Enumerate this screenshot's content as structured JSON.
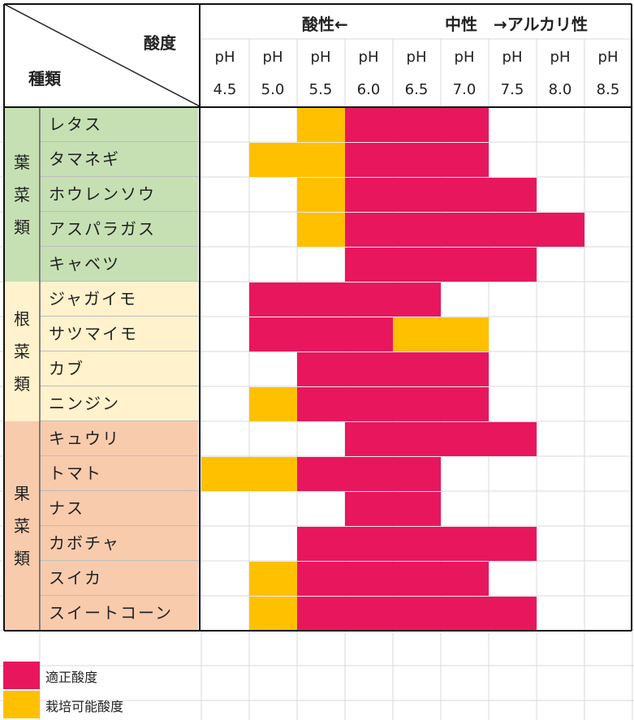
{
  "header": {
    "acidity_label": "酸度",
    "kind_label": "種類",
    "acidic_label": "酸性←",
    "neutral_label": "中性",
    "alkaline_label": "→アルカリ性"
  },
  "colors": {
    "optimal": "#e8175d",
    "possible": "#ffc000",
    "leaf": "#c6e0b4",
    "root": "#fff2cc",
    "fruit": "#f8cbad"
  },
  "legend": [
    {
      "label": "適正酸度",
      "color": "#e8175d"
    },
    {
      "label": "栽培可能酸度",
      "color": "#ffc000"
    }
  ],
  "chart_data": {
    "type": "table",
    "ph_columns": [
      {
        "top": "pH",
        "bottom": "4.5"
      },
      {
        "top": "pH",
        "bottom": "5.0"
      },
      {
        "top": "pH",
        "bottom": "5.5"
      },
      {
        "top": "pH",
        "bottom": "6.0"
      },
      {
        "top": "pH",
        "bottom": "6.5"
      },
      {
        "top": "pH",
        "bottom": "7.0"
      },
      {
        "top": "pH",
        "bottom": "7.5"
      },
      {
        "top": "pH",
        "bottom": "8.0"
      },
      {
        "top": "pH",
        "bottom": "8.5"
      }
    ],
    "categories": [
      {
        "name": "葉菜類",
        "chars": [
          "葉",
          "菜",
          "類"
        ],
        "color_key": "leaf",
        "rows": 5
      },
      {
        "name": "根菜類",
        "chars": [
          "根",
          "菜",
          "類"
        ],
        "color_key": "root",
        "rows": 4
      },
      {
        "name": "果菜類",
        "chars": [
          "果",
          "菜",
          "類"
        ],
        "color_key": "fruit",
        "rows": 6
      }
    ],
    "vegetables": [
      {
        "name": "レタス",
        "category": "葉菜類",
        "optimal": [
          6.0,
          7.0
        ],
        "possible": [
          [
            5.5,
            5.5
          ]
        ]
      },
      {
        "name": "タマネギ",
        "category": "葉菜類",
        "optimal": [
          6.0,
          7.0
        ],
        "possible": [
          [
            5.0,
            5.5
          ]
        ]
      },
      {
        "name": "ホウレンソウ",
        "category": "葉菜類",
        "optimal": [
          6.0,
          7.5
        ],
        "possible": [
          [
            5.5,
            5.5
          ]
        ]
      },
      {
        "name": "アスパラガス",
        "category": "葉菜類",
        "optimal": [
          6.0,
          8.0
        ],
        "possible": [
          [
            5.5,
            5.5
          ]
        ]
      },
      {
        "name": "キャベツ",
        "category": "葉菜類",
        "optimal": [
          6.0,
          7.5
        ],
        "possible": []
      },
      {
        "name": "ジャガイモ",
        "category": "根菜類",
        "optimal": [
          5.0,
          6.5
        ],
        "possible": []
      },
      {
        "name": "サツマイモ",
        "category": "根菜類",
        "optimal": [
          5.0,
          6.0
        ],
        "possible": [
          [
            6.5,
            7.0
          ]
        ]
      },
      {
        "name": "カブ",
        "category": "根菜類",
        "optimal": [
          5.5,
          7.0
        ],
        "possible": []
      },
      {
        "name": "ニンジン",
        "category": "根菜類",
        "optimal": [
          5.5,
          7.0
        ],
        "possible": [
          [
            5.0,
            5.0
          ]
        ]
      },
      {
        "name": "キュウリ",
        "category": "果菜類",
        "optimal": [
          6.0,
          7.5
        ],
        "possible": []
      },
      {
        "name": "トマト",
        "category": "果菜類",
        "optimal": [
          5.5,
          6.5
        ],
        "possible": [
          [
            4.5,
            5.0
          ]
        ]
      },
      {
        "name": "ナス",
        "category": "果菜類",
        "optimal": [
          6.0,
          6.5
        ],
        "possible": []
      },
      {
        "name": "カボチャ",
        "category": "果菜類",
        "optimal": [
          5.5,
          7.5
        ],
        "possible": []
      },
      {
        "name": "スイカ",
        "category": "果菜類",
        "optimal": [
          5.5,
          7.0
        ],
        "possible": [
          [
            5.0,
            5.0
          ]
        ]
      },
      {
        "name": "スイートコーン",
        "category": "果菜類",
        "optimal": [
          5.5,
          7.5
        ],
        "possible": [
          [
            5.0,
            5.0
          ]
        ]
      }
    ]
  }
}
